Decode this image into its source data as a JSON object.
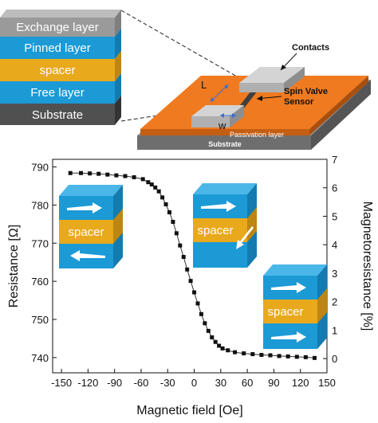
{
  "stack_layers": [
    {
      "label": "Exchange layer",
      "color": "#9a9a9a"
    },
    {
      "label": "Pinned layer",
      "color": "#1b9ad6"
    },
    {
      "label": "spacer",
      "color": "#e9a91c"
    },
    {
      "label": "Free layer",
      "color": "#1b9ad6"
    },
    {
      "label": "Substrate",
      "color": "#505050"
    }
  ],
  "device": {
    "contacts_label": "Contacts",
    "sensor_label_line1": "Spin Valve",
    "sensor_label_line2": "Sensor",
    "passivation_label": "Passivation layer",
    "substrate_label": "Substrate",
    "length_symbol": "L",
    "width_symbol": "w"
  },
  "insets": {
    "spacer_label": "spacer"
  },
  "chart_data": {
    "type": "scatter",
    "xlabel": "Magnetic field [Oe]",
    "ylabel": "Resistance [Ω]",
    "y2label": "Magnetoresistance [%]",
    "xlim": [
      -160,
      150
    ],
    "ylim": [
      736,
      792
    ],
    "y2lim": [
      -0.5,
      7.0
    ],
    "x_ticks": [
      -150,
      -120,
      -90,
      -60,
      -30,
      0,
      30,
      60,
      90,
      120,
      150
    ],
    "y_ticks": [
      740,
      750,
      760,
      770,
      780,
      790
    ],
    "y2_ticks": [
      0,
      1,
      2,
      3,
      4,
      5,
      6,
      7
    ],
    "points": [
      [
        -140,
        788.4
      ],
      [
        -128,
        788.4
      ],
      [
        -118,
        788.3
      ],
      [
        -108,
        788.2
      ],
      [
        -98,
        788.0
      ],
      [
        -88,
        787.8
      ],
      [
        -78,
        787.6
      ],
      [
        -68,
        787.3
      ],
      [
        -58,
        786.8
      ],
      [
        -52,
        786.0
      ],
      [
        -48,
        785.4
      ],
      [
        -44,
        784.6
      ],
      [
        -40,
        783.6
      ],
      [
        -36,
        782.0
      ],
      [
        -32,
        780.2
      ],
      [
        -28,
        778.1
      ],
      [
        -24,
        775.6
      ],
      [
        -20,
        772.6
      ],
      [
        -16,
        769.4
      ],
      [
        -12,
        766.4
      ],
      [
        -8,
        763.1
      ],
      [
        -4,
        760.1
      ],
      [
        0,
        757.1
      ],
      [
        4,
        754.2
      ],
      [
        8,
        751.4
      ],
      [
        12,
        749.0
      ],
      [
        16,
        747.0
      ],
      [
        20,
        745.3
      ],
      [
        24,
        744.1
      ],
      [
        28,
        743.1
      ],
      [
        32,
        742.4
      ],
      [
        38,
        741.9
      ],
      [
        46,
        741.4
      ],
      [
        56,
        741.1
      ],
      [
        66,
        740.9
      ],
      [
        76,
        740.7
      ],
      [
        86,
        740.6
      ],
      [
        96,
        740.4
      ],
      [
        106,
        740.3
      ],
      [
        116,
        740.2
      ],
      [
        126,
        740.1
      ],
      [
        136,
        739.9
      ]
    ]
  }
}
